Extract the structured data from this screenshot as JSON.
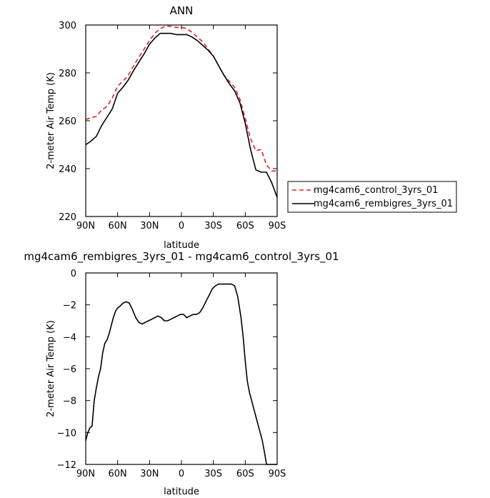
{
  "chart_data": [
    {
      "type": "line",
      "title": "ANN",
      "xlabel": "latitude",
      "ylabel": "2-meter Air Temp (K)",
      "xlim": [
        90,
        -90
      ],
      "ylim": [
        220,
        300
      ],
      "xticks": [
        90,
        60,
        30,
        0,
        -30,
        -60,
        -90
      ],
      "xticklabels": [
        "90N",
        "60N",
        "30N",
        "0",
        "30S",
        "60S",
        "90S"
      ],
      "yticks": [
        220,
        240,
        260,
        280,
        300
      ],
      "yticklabels": [
        "220",
        "240",
        "260",
        "280",
        "300"
      ],
      "grid": false,
      "legend": "right",
      "x": [
        90,
        85,
        80,
        75,
        70,
        65,
        60,
        55,
        50,
        45,
        40,
        35,
        30,
        25,
        20,
        15,
        10,
        5,
        0,
        -5,
        -10,
        -15,
        -20,
        -25,
        -30,
        -35,
        -40,
        -45,
        -50,
        -55,
        -60,
        -65,
        -70,
        -75,
        -80,
        -85,
        -90
      ],
      "series": [
        {
          "name": "mg4cam6_control_3yrs_01",
          "color": "#e02020",
          "dash": "dashed",
          "values": [
            260.5,
            261.3,
            261.8,
            264.5,
            266,
            269.5,
            274.5,
            276.5,
            279,
            283,
            286.5,
            290,
            293.5,
            296.5,
            298.5,
            299.5,
            299.5,
            299,
            299,
            298.5,
            297,
            295,
            293,
            290,
            287,
            283,
            279,
            276.5,
            274,
            269,
            261,
            252.5,
            247.5,
            248,
            241.5,
            239,
            239
          ]
        },
        {
          "name": "mg4cam6_rembigres_3yrs_01",
          "color": "#000000",
          "dash": "solid",
          "values": [
            250,
            251.5,
            253.5,
            258,
            261.5,
            265,
            271.5,
            274,
            277,
            281,
            284.5,
            288,
            292,
            294.5,
            296.5,
            296.5,
            296.5,
            296,
            296,
            296,
            295,
            293.5,
            291.5,
            289.5,
            287,
            283,
            279,
            275.5,
            272.5,
            267.5,
            259,
            248,
            239.5,
            238.5,
            238.5,
            234,
            228
          ]
        }
      ]
    },
    {
      "type": "line",
      "title": "mg4cam6_rembigres_3yrs_01 - mg4cam6_control_3yrs_01",
      "xlabel": "latitude",
      "ylabel": "2-meter Air Temp (K)",
      "xlim": [
        90,
        -90
      ],
      "ylim": [
        -12,
        0
      ],
      "xticks": [
        90,
        60,
        30,
        0,
        -30,
        -60,
        -90
      ],
      "xticklabels": [
        "90N",
        "60N",
        "30N",
        "0",
        "30S",
        "60S",
        "90S"
      ],
      "yticks": [
        0,
        -2,
        -4,
        -6,
        -8,
        -10,
        -12
      ],
      "yticklabels": [
        "0",
        "−2",
        "−4",
        "−6",
        "−8",
        "−10",
        "−12"
      ],
      "grid": false,
      "x": [
        90,
        88,
        86,
        84,
        82,
        80,
        78,
        76,
        74,
        72,
        70,
        68,
        66,
        64,
        62,
        60,
        58,
        55,
        52,
        49,
        46,
        43,
        40,
        37,
        34,
        31,
        28,
        25,
        22,
        19,
        16,
        13,
        10,
        7,
        4,
        1,
        -2,
        -5,
        -8,
        -11,
        -14,
        -17,
        -20,
        -23,
        -26,
        -29,
        -32,
        -35,
        -38,
        -41,
        -44,
        -47,
        -50,
        -53,
        -56,
        -58,
        -60,
        -62,
        -64,
        -66,
        -68,
        -70,
        -72,
        -74,
        -76,
        -78,
        -80,
        -82,
        -84,
        -86,
        -88,
        -90
      ],
      "series": [
        {
          "name": "",
          "color": "#000000",
          "dash": "solid",
          "values": [
            -10.5,
            -10.0,
            -9.7,
            -9.6,
            -8.0,
            -7.2,
            -6.5,
            -6.0,
            -5.0,
            -4.4,
            -4.2,
            -3.8,
            -3.3,
            -2.8,
            -2.4,
            -2.2,
            -2.1,
            -1.9,
            -1.8,
            -1.9,
            -2.3,
            -2.8,
            -3.1,
            -3.2,
            -3.1,
            -3.0,
            -2.9,
            -2.8,
            -2.7,
            -2.8,
            -3.0,
            -3.0,
            -2.9,
            -2.8,
            -2.7,
            -2.6,
            -2.6,
            -2.8,
            -2.7,
            -2.6,
            -2.6,
            -2.5,
            -2.2,
            -1.8,
            -1.4,
            -1.0,
            -0.8,
            -0.7,
            -0.7,
            -0.7,
            -0.7,
            -0.7,
            -0.8,
            -1.5,
            -2.8,
            -4.0,
            -5.5,
            -6.8,
            -7.5,
            -8.0,
            -8.5,
            -9.0,
            -9.5,
            -10.0,
            -10.5,
            -11.2,
            -12.0,
            -12.0,
            -12.0,
            -12.0,
            -12.0,
            -12.0
          ]
        }
      ]
    }
  ]
}
